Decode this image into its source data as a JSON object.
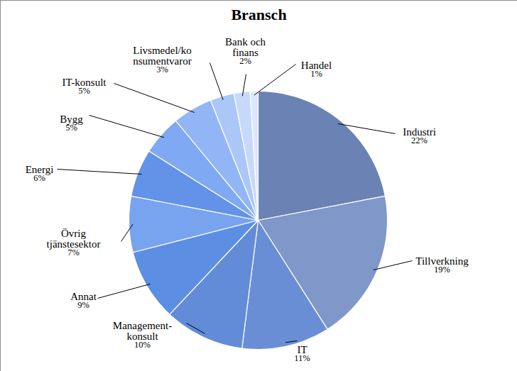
{
  "chart_data": {
    "type": "pie",
    "title": "Bransch",
    "categories": [
      "Industri",
      "Tillverkning",
      "IT",
      "Management-\nkonsult",
      "Annat",
      "Övrig\ntjänstesektor",
      "Energi",
      "Bygg",
      "IT-konsult",
      "Livsmedel/ko\nnsumentvaror",
      "Bank och\nfinans",
      "Handel"
    ],
    "values": [
      22,
      19,
      11,
      10,
      9,
      7,
      6,
      5,
      5,
      3,
      2,
      1
    ],
    "value_labels": [
      "22%",
      "19%",
      "11%",
      "10%",
      "9%",
      "7%",
      "6%",
      "5%",
      "5%",
      "3%",
      "2%",
      "1%"
    ],
    "colors": [
      "#6a82b4",
      "#7f97c9",
      "#6a8ed6",
      "#628bd8",
      "#5c8ee4",
      "#78a3ef",
      "#6293e8",
      "#80a9f3",
      "#92b5f5",
      "#abc7f8",
      "#c6d9fb",
      "#dce8fc"
    ],
    "data_labels": true
  }
}
